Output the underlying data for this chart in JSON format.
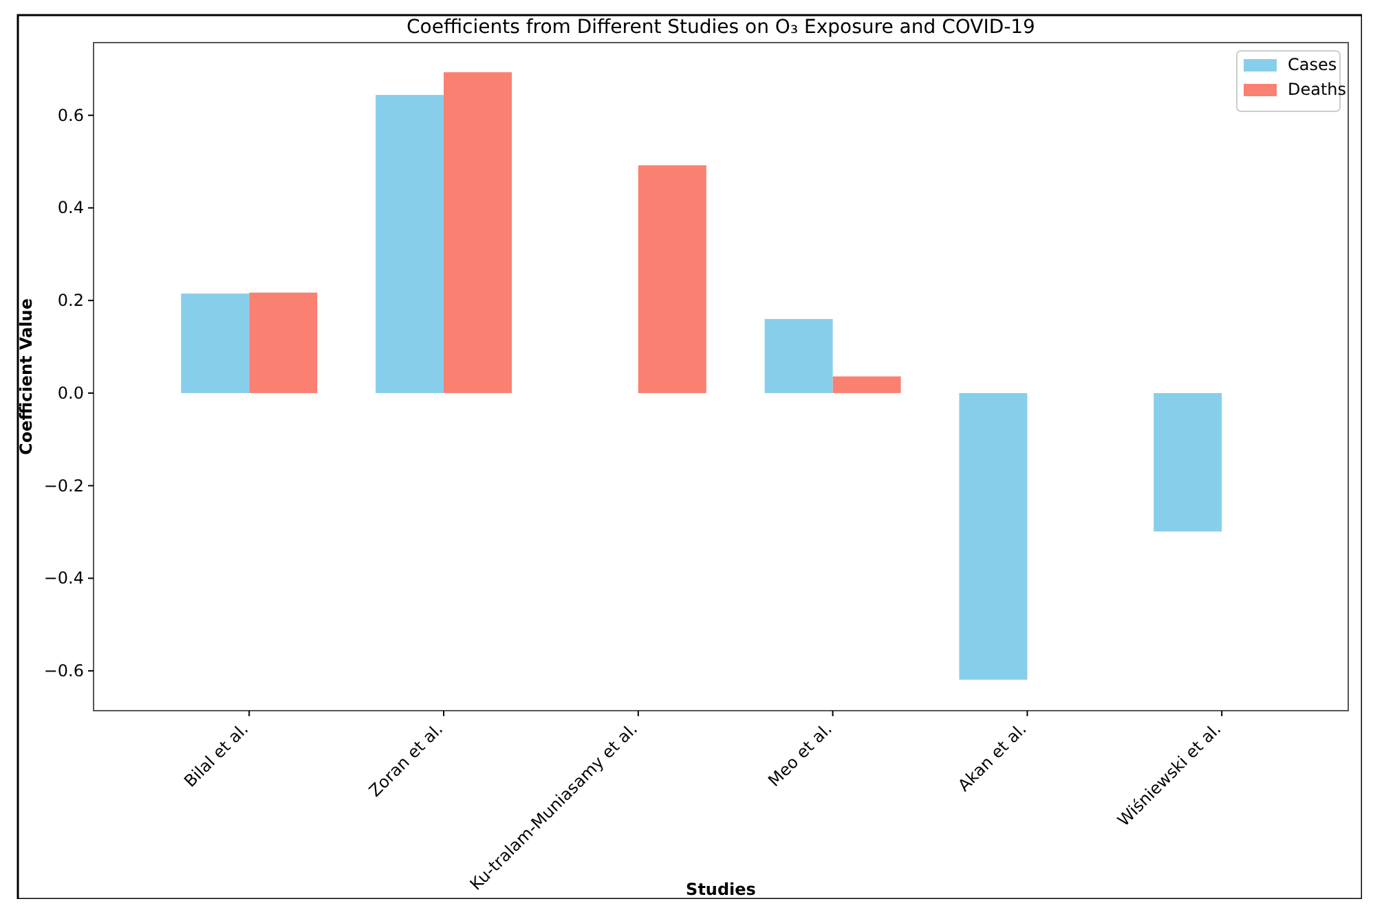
{
  "chart_data": {
    "type": "bar",
    "title": "Coefficients from Different Studies on O₃ Exposure and COVID-19",
    "xlabel": "Studies",
    "ylabel": "Coefficient Value",
    "categories": [
      "Bilal et al.",
      "Zoran et al.",
      "Ku-tralam-Muniasamy et al.",
      "Meo et al.",
      "Akan et al.",
      "Wiśniewski et al."
    ],
    "series": [
      {
        "name": "Cases",
        "color": "#87ceeb",
        "values": [
          0.215,
          0.644,
          null,
          0.16,
          -0.619,
          -0.299
        ]
      },
      {
        "name": "Deaths",
        "color": "#fa8072",
        "values": [
          0.217,
          0.693,
          0.492,
          0.036,
          null,
          null
        ]
      }
    ],
    "ylim": [
      -0.686,
      0.757
    ],
    "yticks": [
      {
        "value": -0.6,
        "label": "−0.6"
      },
      {
        "value": -0.4,
        "label": "−0.4"
      },
      {
        "value": -0.2,
        "label": "−0.2"
      },
      {
        "value": 0,
        "label": "0.0"
      },
      {
        "value": 0.2,
        "label": "0.2"
      },
      {
        "value": 0.4,
        "label": "0.4"
      },
      {
        "value": 0.6,
        "label": "0.6"
      }
    ],
    "legend": "top right"
  }
}
